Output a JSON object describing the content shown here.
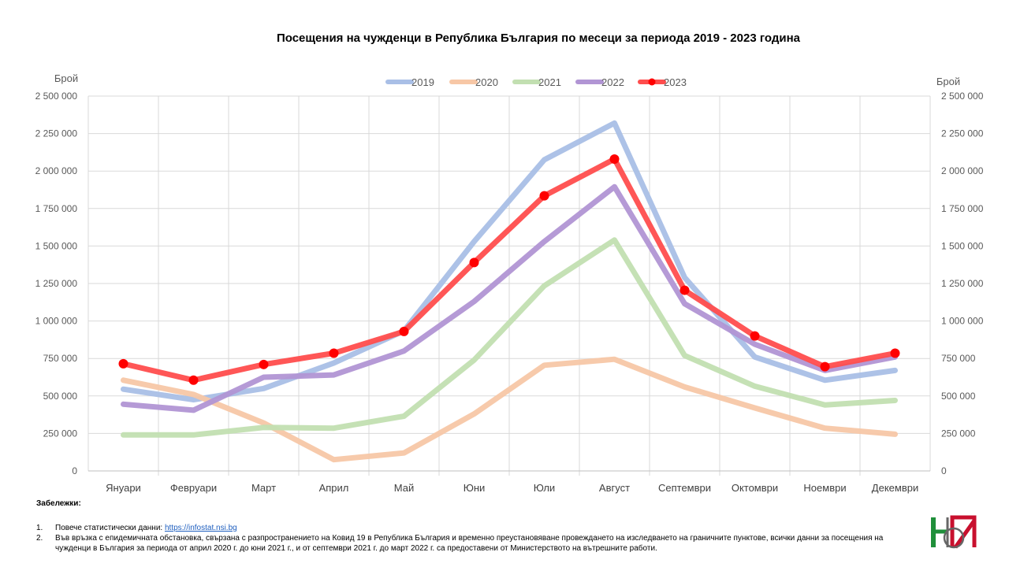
{
  "chart_data": {
    "type": "line",
    "title": "Посещения на чужденци в Република България по месеци за периода 2019 - 2023 година",
    "ylabel_left": "Брой",
    "ylabel_right": "Брой",
    "ylim": [
      0,
      2500000
    ],
    "yticks": [
      "0",
      "250 000",
      "500 000",
      "750 000",
      "1 000 000",
      "1 250 000",
      "1 500 000",
      "1 750 000",
      "2 000 000",
      "2 250 000",
      "2 500 000"
    ],
    "ytick_values": [
      0,
      250000,
      500000,
      750000,
      1000000,
      1250000,
      1500000,
      1750000,
      2000000,
      2250000,
      2500000
    ],
    "categories": [
      "Януари",
      "Февруари",
      "Март",
      "Април",
      "Май",
      "Юни",
      "Юли",
      "Август",
      "Септември",
      "Октомври",
      "Ноември",
      "Декември"
    ],
    "grid": true,
    "legend_position": "top",
    "series": [
      {
        "name": "2019",
        "color": "#a9bfe6",
        "markers": false,
        "values": [
          545000,
          475000,
          550000,
          720000,
          935000,
          1530000,
          2075000,
          2320000,
          1290000,
          760000,
          605000,
          670000
        ]
      },
      {
        "name": "2020",
        "color": "#f7c7a6",
        "markers": false,
        "values": [
          605000,
          510000,
          320000,
          75000,
          120000,
          380000,
          705000,
          745000,
          560000,
          420000,
          285000,
          245000
        ]
      },
      {
        "name": "2021",
        "color": "#c2dfb1",
        "markers": false,
        "values": [
          240000,
          240000,
          290000,
          285000,
          365000,
          740000,
          1235000,
          1540000,
          770000,
          565000,
          440000,
          470000
        ]
      },
      {
        "name": "2022",
        "color": "#b195d4",
        "markers": false,
        "values": [
          445000,
          405000,
          625000,
          640000,
          800000,
          1130000,
          1530000,
          1895000,
          1115000,
          845000,
          670000,
          760000
        ]
      },
      {
        "name": "2023",
        "color": "#ff4d4d",
        "marker_color": "#ff0000",
        "markers": true,
        "values": [
          715000,
          605000,
          710000,
          785000,
          930000,
          1390000,
          1835000,
          2080000,
          1205000,
          900000,
          695000,
          785000
        ]
      }
    ]
  },
  "notes": {
    "title": "Забележки:",
    "items": [
      {
        "num": "1.",
        "text": "Повече статистически данни: ",
        "link": "https://infostat.nsi.bg"
      },
      {
        "num": "2.",
        "text": "Във връзка с епидемичната обстановка, свързана с разпространението на Ковид 19 в Република България и временно преустановяване провеждането на изследването на граничните пунктове, всички данни за посещения на чужденци в България за периода от април 2020 г. до юни 2021 г., и от септември 2021 г. до март 2022 г. са предоставени от Министерството на вътрешните работи."
      }
    ]
  },
  "logo": {
    "icon": "nsi-logo-icon",
    "colors": [
      "#1f8f3a",
      "#c8102e",
      "#666666"
    ]
  }
}
